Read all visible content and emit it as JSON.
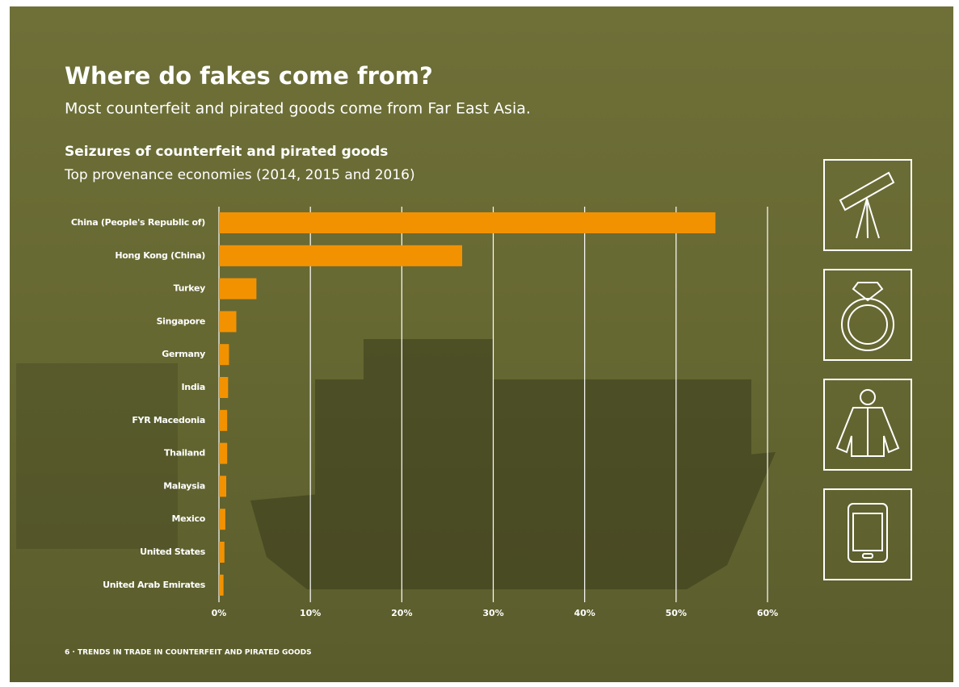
{
  "title": "Where do fakes come from?",
  "subtitle": "Most counterfeit and pirated goods come from Far East Asia.",
  "footer": "6 · TRENDS IN TRADE IN COUNTERFEIT AND PIRATED GOODS",
  "chart_data": {
    "type": "bar",
    "title": "Seizures of counterfeit and pirated goods",
    "subtitle": "Top provenance economies (2014, 2015 and 2016)",
    "categories": [
      "China (People's Republic of)",
      "Hong Kong (China)",
      "Turkey",
      "Singapore",
      "Germany",
      "India",
      "FYR Macedonia",
      "Thailand",
      "Malaysia",
      "Mexico",
      "United States",
      "United Arab Emirates"
    ],
    "values": [
      54.3,
      26.6,
      4.1,
      1.9,
      1.1,
      1.0,
      0.9,
      0.9,
      0.8,
      0.7,
      0.6,
      0.5
    ],
    "color": "#f39200",
    "xlim": [
      0,
      60
    ],
    "xticks": [
      {
        "value": 0,
        "label": "0%"
      },
      {
        "value": 10,
        "label": "10%"
      },
      {
        "value": 20,
        "label": "20%"
      },
      {
        "value": 30,
        "label": "30%"
      },
      {
        "value": 40,
        "label": "40%"
      },
      {
        "value": 50,
        "label": "50%"
      },
      {
        "value": 60,
        "label": "60%"
      }
    ],
    "grid": true
  }
}
